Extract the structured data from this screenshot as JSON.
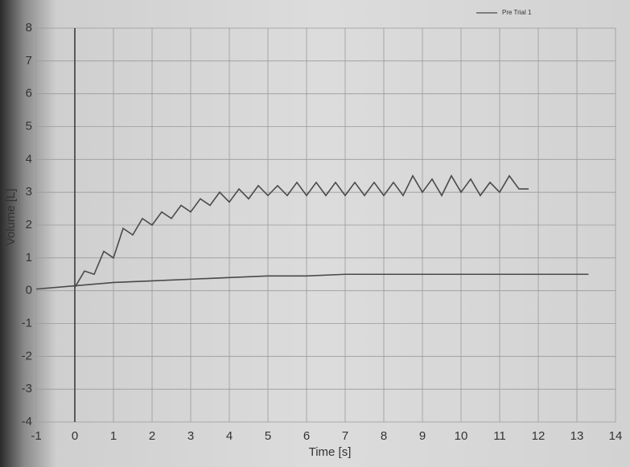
{
  "chart_data": {
    "type": "line",
    "x_label": "Time [s]",
    "y_label": "Volume [L]",
    "xlim": [
      -1,
      14
    ],
    "xticks": [
      -1,
      0,
      1,
      2,
      3,
      4,
      5,
      6,
      7,
      8,
      9,
      10,
      11,
      12,
      13,
      14
    ],
    "ylim": [
      -4,
      8
    ],
    "yticks": [
      -4,
      -3,
      -2,
      -1,
      0,
      1,
      2,
      3,
      4,
      5,
      6,
      7,
      8
    ],
    "grid": true,
    "legend": "top-right",
    "series": [
      {
        "name": "Pre Trial 1",
        "color": "#4a4a4a",
        "x": [
          0,
          0.25,
          0.5,
          0.75,
          1,
          1.25,
          1.5,
          1.75,
          2,
          2.25,
          2.5,
          2.75,
          3,
          3.25,
          3.5,
          3.75,
          4,
          4.25,
          4.5,
          4.75,
          5,
          5.25,
          5.5,
          5.75,
          6,
          6.25,
          6.5,
          6.75,
          7,
          7.25,
          7.5,
          7.75,
          8,
          8.25,
          8.5,
          8.75,
          9,
          9.25,
          9.5,
          9.75,
          10,
          10.25,
          10.5,
          10.75,
          11,
          11.25,
          11.5,
          11.75
        ],
        "values": [
          0.1,
          0.6,
          0.5,
          1.2,
          1.0,
          1.9,
          1.7,
          2.2,
          2.0,
          2.4,
          2.2,
          2.6,
          2.4,
          2.8,
          2.6,
          3.0,
          2.7,
          3.1,
          2.8,
          3.2,
          2.9,
          3.2,
          2.9,
          3.3,
          2.9,
          3.3,
          2.9,
          3.3,
          2.9,
          3.3,
          2.9,
          3.3,
          2.9,
          3.3,
          2.9,
          3.5,
          3.0,
          3.4,
          2.9,
          3.5,
          3.0,
          3.4,
          2.9,
          3.3,
          3.0,
          3.5,
          3.1,
          3.1
        ]
      },
      {
        "color": "#4a4a4a",
        "x": [
          -1,
          0,
          1,
          2,
          3,
          4,
          5,
          6,
          7,
          8,
          9,
          10,
          11,
          12,
          13.3
        ],
        "values": [
          0.05,
          0.15,
          0.25,
          0.3,
          0.35,
          0.4,
          0.45,
          0.45,
          0.5,
          0.5,
          0.5,
          0.5,
          0.5,
          0.5,
          0.5
        ]
      }
    ]
  }
}
